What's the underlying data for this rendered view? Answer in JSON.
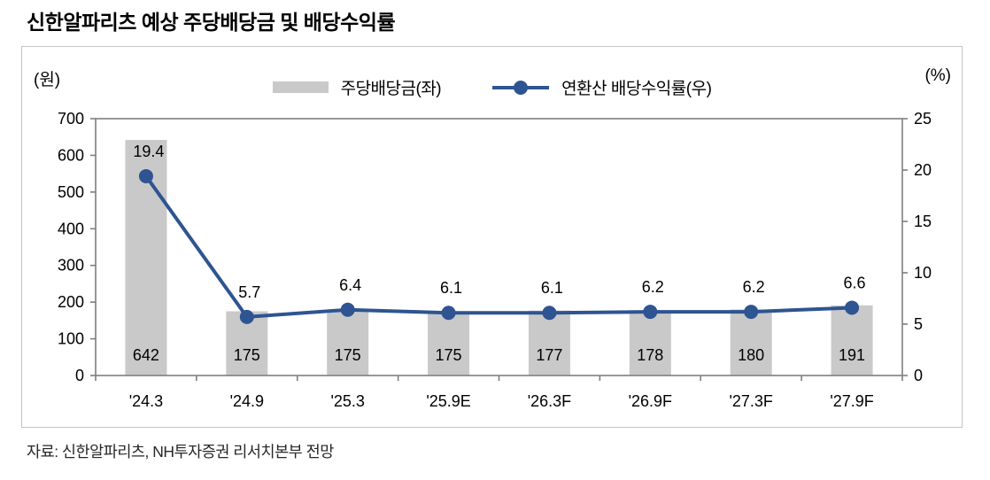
{
  "title": "신한알파리츠 예상 주당배당금 및 배당수익률",
  "source": "자료: 신한알파리츠, NH투자증권 리서치본부 전망",
  "colors": {
    "bar": "#c9c9c9",
    "line": "#2e5491",
    "axis": "#7f7f7f",
    "text": "#000000",
    "panel_border": "#c3c3c3"
  },
  "chart_data": {
    "type": "bar",
    "subtype": "bar+line combo",
    "categories": [
      "'24.3",
      "'24.9",
      "'25.3",
      "'25.9E",
      "'26.3F",
      "'26.9F",
      "'27.3F",
      "'27.9F"
    ],
    "series": [
      {
        "name": "주당배당금(좌)",
        "type": "bar",
        "axis": "left",
        "values": [
          642,
          175,
          175,
          175,
          177,
          178,
          180,
          191
        ]
      },
      {
        "name": "연환산 배당수익률(우)",
        "type": "line",
        "axis": "right",
        "values": [
          19.4,
          5.7,
          6.4,
          6.1,
          6.1,
          6.2,
          6.2,
          6.6
        ]
      }
    ],
    "left_axis": {
      "unit": "(원)",
      "min": 0,
      "max": 700,
      "ticks": [
        700,
        600,
        500,
        400,
        300,
        200,
        100,
        0
      ]
    },
    "right_axis": {
      "unit": "(%)",
      "min": 0,
      "max": 25,
      "ticks": [
        25,
        20,
        15,
        10,
        5,
        0
      ]
    },
    "legend_position": "top-center",
    "grid": false,
    "data_labels": true
  }
}
